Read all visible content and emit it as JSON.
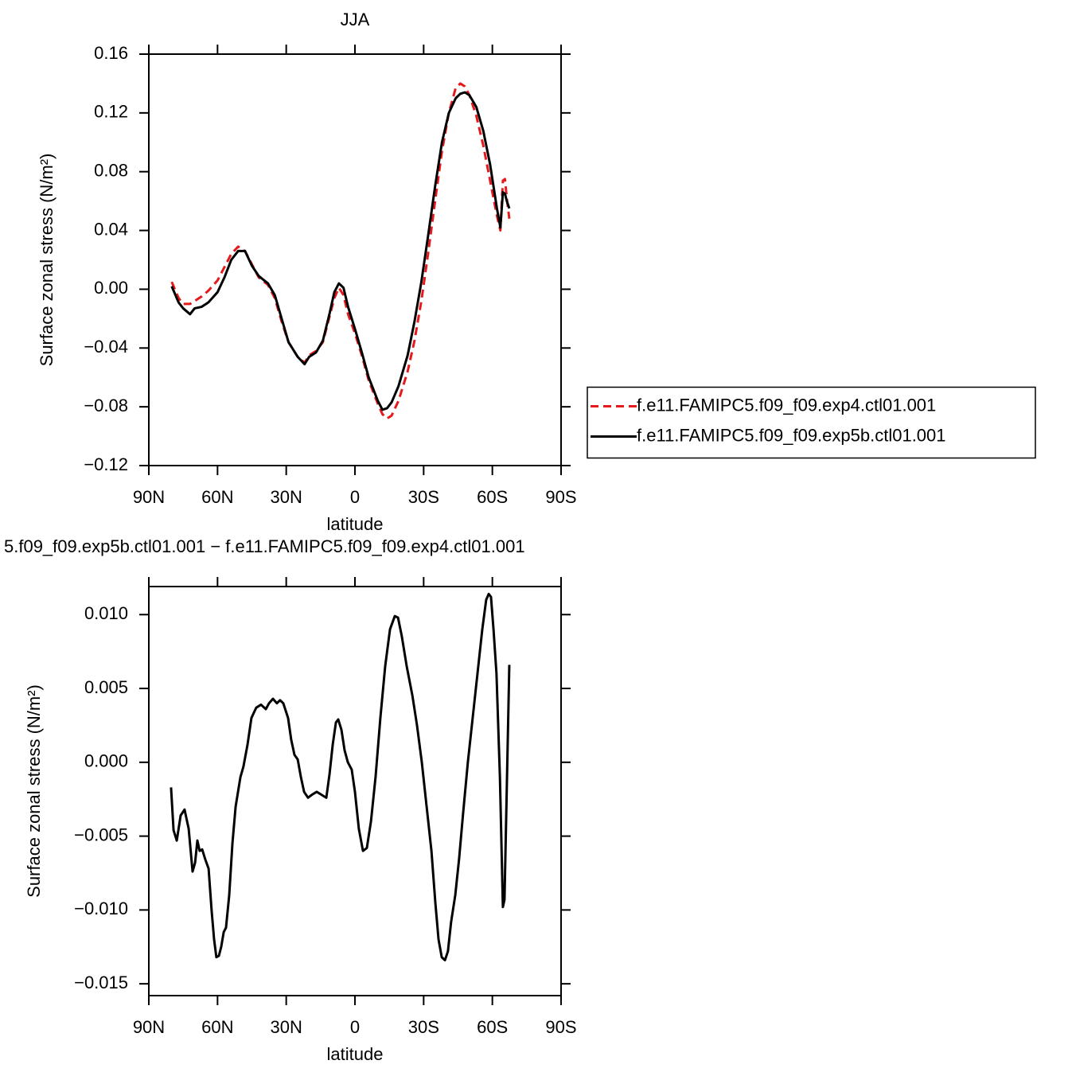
{
  "chart_data": [
    {
      "type": "line",
      "title": "JJA",
      "xlabel": "latitude",
      "ylabel": "Surface zonal stress (N/m²)",
      "xlim": [
        90,
        -90
      ],
      "xticks": [
        {
          "value": 90,
          "label": "90N"
        },
        {
          "value": 60,
          "label": "60N"
        },
        {
          "value": 30,
          "label": "30N"
        },
        0,
        {
          "value": -30,
          "label": "30S"
        },
        {
          "value": -60,
          "label": "60S"
        },
        {
          "value": -90,
          "label": "90S"
        }
      ],
      "ylim": [
        -0.12,
        0.16
      ],
      "yticks": [
        {
          "value": -0.12,
          "label": "−0.12"
        },
        {
          "value": -0.08,
          "label": "−0.08"
        },
        {
          "value": -0.04,
          "label": "−0.04"
        },
        {
          "value": 0,
          "label": "0.00"
        },
        0.04,
        0.08,
        0.12,
        0.16
      ],
      "legend": "right",
      "x": [
        80,
        77,
        75,
        72,
        70,
        67,
        64,
        60,
        57,
        54,
        51,
        48,
        45,
        42,
        38,
        35,
        32,
        29,
        25,
        22,
        20,
        17,
        14,
        11,
        9,
        7,
        5,
        3,
        0,
        -3,
        -6,
        -10,
        -12,
        -14,
        -16,
        -19,
        -23,
        -26,
        -29,
        -32,
        -35,
        -38,
        -41,
        -44,
        -46,
        -48,
        -50,
        -53,
        -56,
        -59,
        -62,
        -63.5,
        -64.6,
        -65.5,
        -66.3,
        -67.4
      ],
      "series": [
        {
          "name": "f.e11.FAMIPC5.f09_f09.exp4.ctl01.001",
          "color": "#e41a1c",
          "style": "dashed",
          "values": [
            0.005,
            -0.006,
            -0.01,
            -0.01,
            -0.008,
            -0.005,
            -0.001,
            0.006,
            0.015,
            0.024,
            0.029,
            0.026,
            0.017,
            0.008,
            0.003,
            -0.006,
            -0.022,
            -0.036,
            -0.046,
            -0.05,
            -0.045,
            -0.042,
            -0.036,
            -0.018,
            -0.006,
            0.001,
            -0.004,
            -0.017,
            -0.03,
            -0.045,
            -0.062,
            -0.078,
            -0.085,
            -0.088,
            -0.086,
            -0.076,
            -0.056,
            -0.035,
            -0.008,
            0.025,
            0.06,
            0.094,
            0.12,
            0.137,
            0.14,
            0.138,
            0.132,
            0.118,
            0.098,
            0.074,
            0.05,
            0.04,
            0.074,
            0.075,
            0.062,
            0.048
          ]
        },
        {
          "name": "f.e11.FAMIPC5.f09_f09.exp5b.ctl01.001",
          "color": "#000000",
          "style": "solid",
          "values": [
            0.002,
            -0.009,
            -0.013,
            -0.017,
            -0.013,
            -0.012,
            -0.009,
            -0.002,
            0.008,
            0.02,
            0.026,
            0.026,
            0.016,
            0.009,
            0.004,
            -0.004,
            -0.02,
            -0.036,
            -0.046,
            -0.051,
            -0.046,
            -0.043,
            -0.035,
            -0.016,
            -0.002,
            0.004,
            0.001,
            -0.012,
            -0.027,
            -0.043,
            -0.06,
            -0.076,
            -0.082,
            -0.081,
            -0.077,
            -0.066,
            -0.045,
            -0.022,
            0.005,
            0.037,
            0.07,
            0.1,
            0.12,
            0.13,
            0.133,
            0.134,
            0.132,
            0.124,
            0.108,
            0.085,
            0.055,
            0.042,
            0.066,
            0.065,
            0.06,
            0.055
          ]
        }
      ]
    },
    {
      "type": "line",
      "title": "5.f09_f09.exp5b.ctl01.001 − f.e11.FAMIPC5.f09_f09.exp4.ctl01.001",
      "xlabel": "latitude",
      "ylabel": "Surface zonal stress (N/m²)",
      "xlim": [
        90,
        -90
      ],
      "xticks": [
        {
          "value": 90,
          "label": "90N"
        },
        {
          "value": 60,
          "label": "60N"
        },
        {
          "value": 30,
          "label": "30N"
        },
        0,
        {
          "value": -30,
          "label": "30S"
        },
        {
          "value": -60,
          "label": "60S"
        },
        {
          "value": -90,
          "label": "90S"
        }
      ],
      "ylim": [
        -0.0158,
        0.0119
      ],
      "yticks": [
        {
          "value": -0.015,
          "label": "−0.015"
        },
        {
          "value": -0.01,
          "label": "−0.010"
        },
        {
          "value": -0.005,
          "label": "−0.005"
        },
        {
          "value": 0,
          "label": "0.000"
        },
        {
          "value": 0.005,
          "label": "0.005"
        },
        {
          "value": 0.01,
          "label": "0.010"
        }
      ],
      "x": [
        80.3,
        79.2,
        77.8,
        76.1,
        74.4,
        72.6,
        70.9,
        69.8,
        68.8,
        67.8,
        66.7,
        65.3,
        63.9,
        62.6,
        61.5,
        60.5,
        59.4,
        58.4,
        57.3,
        56.3,
        54.9,
        53.5,
        52.1,
        50.0,
        48.7,
        46.9,
        45.2,
        43.1,
        41.0,
        38.9,
        37.5,
        35.8,
        34.1,
        32.7,
        31.3,
        29.2,
        27.8,
        26.4,
        25.0,
        23.6,
        22.2,
        20.5,
        18.8,
        16.7,
        14.6,
        12.5,
        11.1,
        9.7,
        8.3,
        7.3,
        5.9,
        4.5,
        3.1,
        1.4,
        0,
        -1.7,
        -3.5,
        -5.2,
        -7.0,
        -9.0,
        -11.1,
        -13.2,
        -15.3,
        -17.4,
        -18.8,
        -20.5,
        -22.6,
        -25.1,
        -27.1,
        -29.2,
        -31.3,
        -33.4,
        -35.1,
        -36.5,
        -37.9,
        -39.3,
        -40.6,
        -42.0,
        -43.8,
        -45.5,
        -47.2,
        -49.3,
        -51.4,
        -53.5,
        -55.6,
        -57.3,
        -58.4,
        -59.4,
        -60.5,
        -61.8,
        -63.3,
        -64.6,
        -65.3,
        -66.4,
        -67.4
      ],
      "series": [
        {
          "color": "#000000",
          "style": "solid",
          "values": [
            -0.0017,
            -0.0046,
            -0.0053,
            -0.0036,
            -0.0032,
            -0.0045,
            -0.0074,
            -0.0068,
            -0.0053,
            -0.006,
            -0.0059,
            -0.0066,
            -0.0072,
            -0.01,
            -0.012,
            -0.0132,
            -0.0131,
            -0.0125,
            -0.0115,
            -0.0112,
            -0.009,
            -0.0055,
            -0.003,
            -0.001,
            -0.0003,
            0.0012,
            0.003,
            0.0037,
            0.0039,
            0.0036,
            0.004,
            0.0043,
            0.004,
            0.0042,
            0.004,
            0.003,
            0.0015,
            0.0005,
            0.0002,
            -0.001,
            -0.002,
            -0.0024,
            -0.0022,
            -0.002,
            -0.0022,
            -0.0024,
            -0.0008,
            0.0012,
            0.0027,
            0.0029,
            0.0022,
            0.0008,
            0.0,
            -0.0005,
            -0.002,
            -0.0045,
            -0.006,
            -0.0058,
            -0.004,
            -0.001,
            0.003,
            0.0065,
            0.009,
            0.0099,
            0.0098,
            0.0085,
            0.0065,
            0.0045,
            0.0025,
            0.0,
            -0.003,
            -0.006,
            -0.0095,
            -0.012,
            -0.0132,
            -0.0134,
            -0.0128,
            -0.0108,
            -0.009,
            -0.0065,
            -0.0035,
            0.0,
            0.003,
            0.006,
            0.009,
            0.011,
            0.0114,
            0.0112,
            0.009,
            0.006,
            -0.001,
            -0.0098,
            -0.0093,
            -0.001,
            0.0066
          ]
        }
      ]
    }
  ]
}
